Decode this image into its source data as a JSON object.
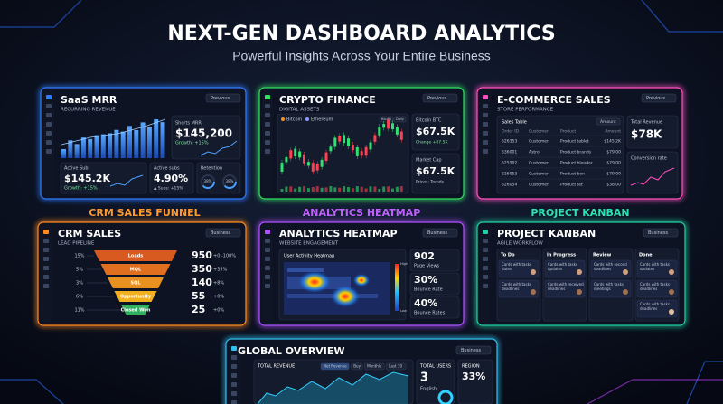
{
  "header": {
    "title": "NEXT-GEN DASHBOARD ANALYTICS",
    "subtitle": "Powerful Insights Across Your Entire Business"
  },
  "section_labels": [
    "CRM SALES FUNNEL",
    "ANALYTICS HEATMAP",
    "PROJECT KANBAN"
  ],
  "saas": {
    "title": "SaaS MRR",
    "subtitle": "RECURRING REVENUE",
    "dropdown": "Previous",
    "mrr": {
      "label": "Shorts MRR",
      "value": "$145,200",
      "note": "Growth: +15%"
    },
    "active": {
      "label": "Active Sub",
      "value": "$145.2K",
      "note": "Growth: +15%"
    },
    "subs": {
      "label": "Active subs",
      "value": "4.90%",
      "note": "▲ Subs: +15%"
    },
    "retention": {
      "label": "Retention",
      "rings": [
        "38%",
        "38%"
      ]
    }
  },
  "crypto": {
    "title": "CRYPTO FINANCE",
    "subtitle": "DIGITAL ASSETS",
    "dropdown": "Previous",
    "legend": [
      "Bitcoin",
      "Ethereum"
    ],
    "tabs": [
      "Hourly",
      "Daily"
    ],
    "btc": {
      "label": "Bitcoin BTC",
      "value": "$67.5K",
      "note": "Change +67.5K"
    },
    "cap": {
      "label": "Market Cap",
      "value": "$67.5K",
      "note": "Prices: Trends"
    }
  },
  "ecom": {
    "title": "E-COMMERCE SALES",
    "subtitle": "STORE PERFORMANCE",
    "dropdown": "Previous",
    "table": {
      "title": "Sales Table",
      "filter": "Amount",
      "columns": [
        "Order ID",
        "Customer",
        "Product",
        "Amount"
      ],
      "rows": [
        [
          "526353",
          "Customer",
          "Product tablet",
          "$145.2K"
        ],
        [
          "536001",
          "Astro",
          "Product brands",
          "$79.00"
        ],
        [
          "525502",
          "Customer",
          "Product blender",
          "$79.00"
        ],
        [
          "526053",
          "Customer",
          "Product bon",
          "$79.00"
        ],
        [
          "526054",
          "Customer",
          "Product tet",
          "$38.00"
        ]
      ]
    },
    "revenue": {
      "label": "Total Revenue",
      "value": "$78K"
    },
    "conversion": {
      "label": "Conversion rate"
    }
  },
  "crm": {
    "title": "CRM SALES",
    "subtitle": "LEAD PIPELINE",
    "dropdown": "Business",
    "stages": [
      {
        "name": "Loads",
        "share": "15%",
        "count": 950,
        "change": "+0 -100%"
      },
      {
        "name": "MQL",
        "share": "5%",
        "count": 350,
        "change": "+35%"
      },
      {
        "name": "SQL",
        "share": "3%",
        "count": 140,
        "change": "+8%"
      },
      {
        "name": "Opportunity",
        "share": "6%",
        "count": 55,
        "change": "+0%"
      },
      {
        "name": "Closed Won",
        "share": "11%",
        "count": 25,
        "change": "+0%"
      }
    ]
  },
  "heatmap": {
    "title": "ANALYTICS HEATMAP",
    "subtitle": "WEBSITE ENGAGEMENT",
    "dropdown": "Business",
    "card_title": "User Activity Heatmap",
    "scale": [
      "High",
      "Low"
    ],
    "stats": [
      {
        "value": "902",
        "label": "Page Views"
      },
      {
        "value": "30%",
        "label": "Bounce Rate"
      },
      {
        "value": "40%",
        "label": "Bounce Rates"
      }
    ]
  },
  "kanban": {
    "title": "PROJECT KANBAN",
    "subtitle": "AGILE WORKFLOW",
    "dropdown": "Business",
    "columns": [
      {
        "name": "To Do",
        "cards": [
          [
            "Cards with tasks",
            "dates"
          ],
          [
            "Cards with tasks",
            "deadlines"
          ]
        ]
      },
      {
        "name": "In Progress",
        "cards": [
          [
            "Cards with tasks",
            "updates"
          ],
          [
            "Cards with received",
            "deadlines"
          ]
        ]
      },
      {
        "name": "Review",
        "cards": [
          [
            "Cards with second",
            "deadlines"
          ],
          [
            "Cards with tasks",
            "meetings"
          ]
        ]
      },
      {
        "name": "Done",
        "cards": [
          [
            "Cards with tasks",
            "updates"
          ],
          [
            "Cards with tasks",
            "deadlines"
          ],
          [
            "Cards with tasks",
            "deadlines"
          ]
        ]
      }
    ]
  },
  "global": {
    "title": "GLOBAL OVERVIEW",
    "dropdown": "Business",
    "revenue_label": "TOTAL REVENUE",
    "pills": [
      "Net Revenue",
      "Buy",
      "Monthly",
      "Last 30"
    ],
    "users_label": "TOTAL USERS",
    "users_value": "3",
    "region_label": "REGION",
    "region_value": "33%",
    "region_name": "English"
  }
}
